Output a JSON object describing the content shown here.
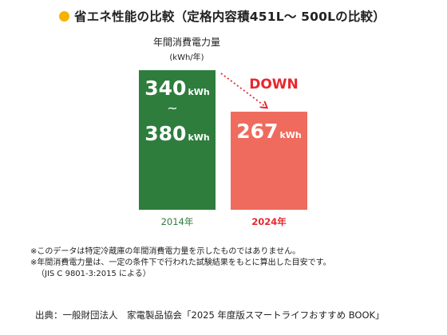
{
  "header": {
    "title": "省エネ性能の比較（定格内容積451L～ 500Lの比較）",
    "bullet_color": "#f5b400"
  },
  "chart_data": {
    "type": "bar",
    "ylabel": "年間消費電力量",
    "yunit": "(kWh/年)",
    "categories": [
      "2014年",
      "2024年"
    ],
    "bars": [
      {
        "category": "2014年",
        "value_min": 340,
        "value_max": 380,
        "unit": "kWh",
        "color": "#2e7d3c"
      },
      {
        "category": "2024年",
        "value": 267,
        "unit": "kWh",
        "color": "#ee6b5e"
      }
    ],
    "range_separator": "~",
    "annotation": {
      "text": "DOWN",
      "color": "#e8262e"
    },
    "ylim": [
      0,
      380
    ]
  },
  "notes": [
    "※このデータは特定冷蔵庫の年間消費電力量を示したものではありません。",
    "※年間消費電力量は、一定の条件下で行われた試験結果をもとに算出した目安です。",
    "（JIS C 9801-3:2015 による）"
  ],
  "source": "出典：一般財団法人　家電製品協会「2025 年度版スマートライフおすすめ BOOK」"
}
